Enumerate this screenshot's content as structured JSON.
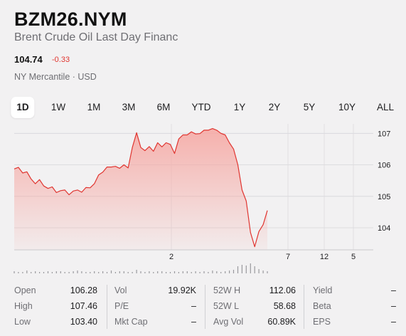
{
  "header": {
    "symbol": "BZM26.NYM",
    "name": "Brent Crude Oil Last Day Financ",
    "price": "104.74",
    "change": "-0.33",
    "exchange": "NY Mercantile · USD"
  },
  "colors": {
    "line": "#e03530",
    "fill_top": "#f6a5a0",
    "change_negative": "#e03530",
    "active_tab_bg": "#ffffff"
  },
  "tabs": [
    {
      "label": "1D",
      "active": true
    },
    {
      "label": "1W",
      "active": false
    },
    {
      "label": "1M",
      "active": false
    },
    {
      "label": "3M",
      "active": false
    },
    {
      "label": "6M",
      "active": false
    },
    {
      "label": "YTD",
      "active": false
    },
    {
      "label": "1Y",
      "active": false
    },
    {
      "label": "2Y",
      "active": false
    },
    {
      "label": "5Y",
      "active": false
    },
    {
      "label": "10Y",
      "active": false
    },
    {
      "label": "ALL",
      "active": false
    }
  ],
  "chart_data": {
    "type": "area",
    "y_ticks": [
      "107",
      "106",
      "105",
      "104"
    ],
    "ylim": [
      103.3,
      107.3
    ],
    "x_ticks": [
      "2",
      "7",
      "12",
      "5"
    ],
    "grid": true,
    "series": [
      {
        "values": [
          105.87,
          105.92,
          105.74,
          105.78,
          105.55,
          105.4,
          105.53,
          105.33,
          105.25,
          105.3,
          105.12,
          105.18,
          105.2,
          105.05,
          105.17,
          105.2,
          105.13,
          105.28,
          105.27,
          105.4,
          105.68,
          105.77,
          105.93,
          105.93,
          105.95,
          105.89,
          106.0,
          105.9,
          106.55,
          107.02,
          106.55,
          106.45,
          106.58,
          106.43,
          106.7,
          106.57,
          106.7,
          106.65,
          106.36,
          106.82,
          106.95,
          106.95,
          107.05,
          106.98,
          106.99,
          107.1,
          107.1,
          107.15,
          107.1,
          107.0,
          106.95,
          106.7,
          106.5,
          106.0,
          105.2,
          104.85,
          103.85,
          103.4,
          103.88,
          104.1,
          104.55
        ]
      }
    ],
    "volume": [
      3,
      2,
      2,
      4,
      2,
      3,
      2,
      2,
      3,
      2,
      3,
      3,
      2,
      2,
      3,
      4,
      3,
      2,
      2,
      3,
      2,
      3,
      2,
      4,
      2,
      3,
      3,
      2,
      2,
      5,
      3,
      2,
      3,
      2,
      3,
      3,
      2,
      2,
      3,
      2,
      3,
      3,
      2,
      3,
      2,
      3,
      2,
      4,
      3,
      2,
      3,
      4,
      5,
      10,
      12,
      11,
      14,
      10,
      6,
      4,
      3
    ]
  },
  "stats": [
    [
      {
        "label": "Open",
        "value": "106.28"
      },
      {
        "label": "High",
        "value": "107.46"
      },
      {
        "label": "Low",
        "value": "103.40"
      }
    ],
    [
      {
        "label": "Vol",
        "value": "19.92K"
      },
      {
        "label": "P/E",
        "value": "–"
      },
      {
        "label": "Mkt Cap",
        "value": "–"
      }
    ],
    [
      {
        "label": "52W H",
        "value": "112.06"
      },
      {
        "label": "52W L",
        "value": "58.68"
      },
      {
        "label": "Avg Vol",
        "value": "60.89K"
      }
    ],
    [
      {
        "label": "Yield",
        "value": "–"
      },
      {
        "label": "Beta",
        "value": "–"
      },
      {
        "label": "EPS",
        "value": "–"
      }
    ]
  ]
}
